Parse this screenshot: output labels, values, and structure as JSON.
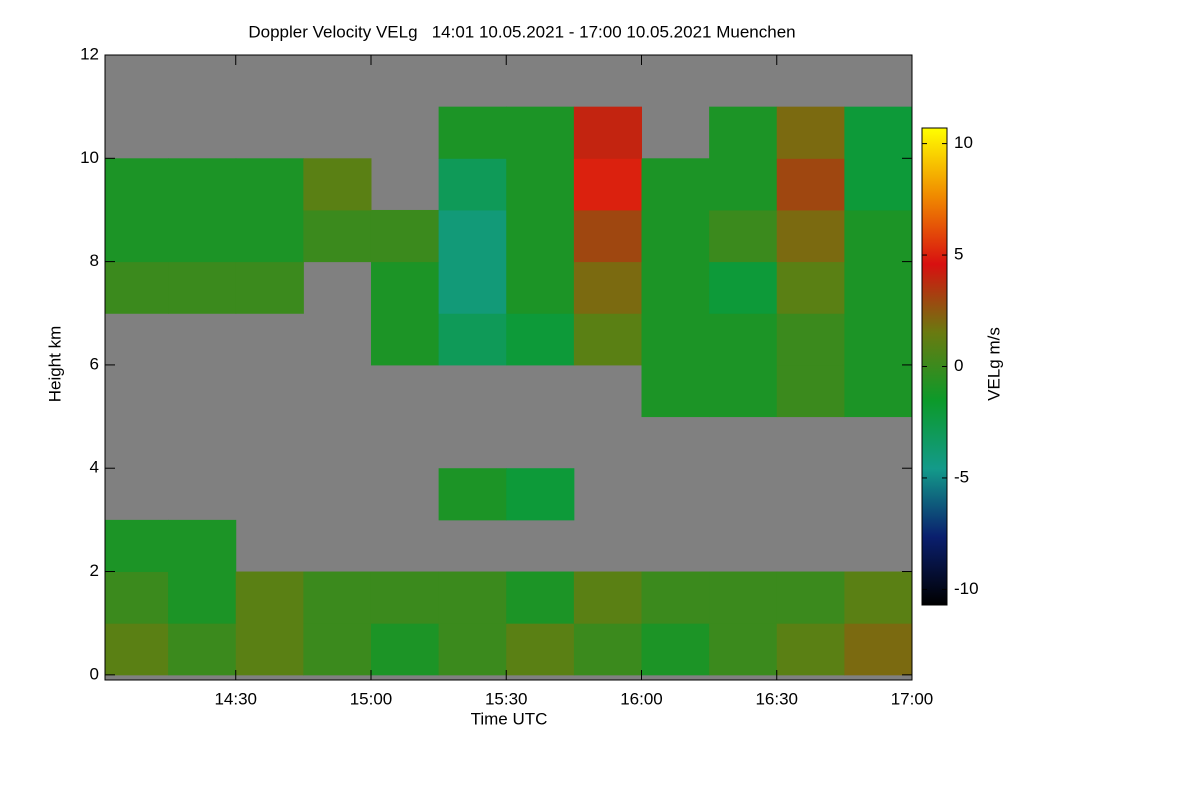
{
  "chart_data": {
    "type": "heatmap",
    "title": "Doppler Velocity VELg   14:01 10.05.2021 - 17:00 10.05.2021 Muenchen",
    "xlabel": "Time UTC",
    "ylabel": "Height km",
    "colorbar_label": "VELg m/s",
    "xlim": [
      14.0167,
      17.0
    ],
    "xticks": [
      {
        "value": 14.5,
        "label": "14:30"
      },
      {
        "value": 15.0,
        "label": "15:00"
      },
      {
        "value": 15.5,
        "label": "15:30"
      },
      {
        "value": 16.0,
        "label": "16:00"
      },
      {
        "value": 16.5,
        "label": "16:30"
      },
      {
        "value": 17.0,
        "label": "17:00"
      }
    ],
    "ylim": [
      -0.1,
      12
    ],
    "yticks": [
      0,
      2,
      4,
      6,
      8,
      10,
      12
    ],
    "zlim": [
      -10.7,
      10.7
    ],
    "zticks": [
      -10,
      -5,
      0,
      5,
      10
    ],
    "colors": [
      "#000000",
      "#0a1f6e",
      "#139a8a",
      "#0c9a2a",
      "#6a7a10",
      "#d81010",
      "#f08a00",
      "#ffff00"
    ],
    "background": "#808080",
    "xbins": [
      14.0167,
      14.25,
      14.5,
      14.75,
      15.0,
      15.25,
      15.5,
      15.75,
      16.0,
      16.25,
      16.5,
      16.75,
      17.0
    ],
    "ybins": [
      0,
      1,
      2,
      3,
      4,
      5,
      6,
      7,
      8,
      9,
      10,
      11,
      12
    ],
    "z": [
      [
        1,
        0,
        1,
        0,
        -1,
        0,
        1,
        0,
        -1,
        0,
        1,
        2
      ],
      [
        0,
        -1,
        1,
        0,
        0,
        0,
        -1,
        1,
        0,
        0,
        0,
        1
      ],
      [
        -1,
        -1,
        null,
        null,
        null,
        null,
        null,
        null,
        null,
        null,
        null,
        null
      ],
      [
        null,
        null,
        null,
        null,
        null,
        -1,
        -2,
        null,
        null,
        null,
        null,
        null
      ],
      [
        null,
        null,
        null,
        null,
        null,
        null,
        null,
        null,
        null,
        null,
        null,
        null
      ],
      [
        null,
        null,
        null,
        null,
        null,
        null,
        null,
        null,
        -1,
        -1,
        0,
        -1
      ],
      [
        null,
        null,
        null,
        null,
        -1,
        -3,
        -2,
        1,
        -1,
        -1,
        0,
        -1
      ],
      [
        0,
        0,
        0,
        null,
        -1,
        -4,
        -1,
        2,
        -1,
        -2,
        1,
        -1
      ],
      [
        -1,
        -1,
        -1,
        0,
        0,
        -4,
        -1,
        3,
        -1,
        0,
        2,
        -1
      ],
      [
        -1,
        -1,
        -1,
        1,
        null,
        -3,
        -1,
        5,
        -1,
        -1,
        3,
        -2
      ],
      [
        null,
        null,
        null,
        null,
        null,
        -1,
        -1,
        4,
        null,
        -1,
        2,
        -2
      ],
      [
        null,
        null,
        null,
        null,
        null,
        null,
        null,
        null,
        null,
        null,
        null,
        null
      ]
    ]
  }
}
